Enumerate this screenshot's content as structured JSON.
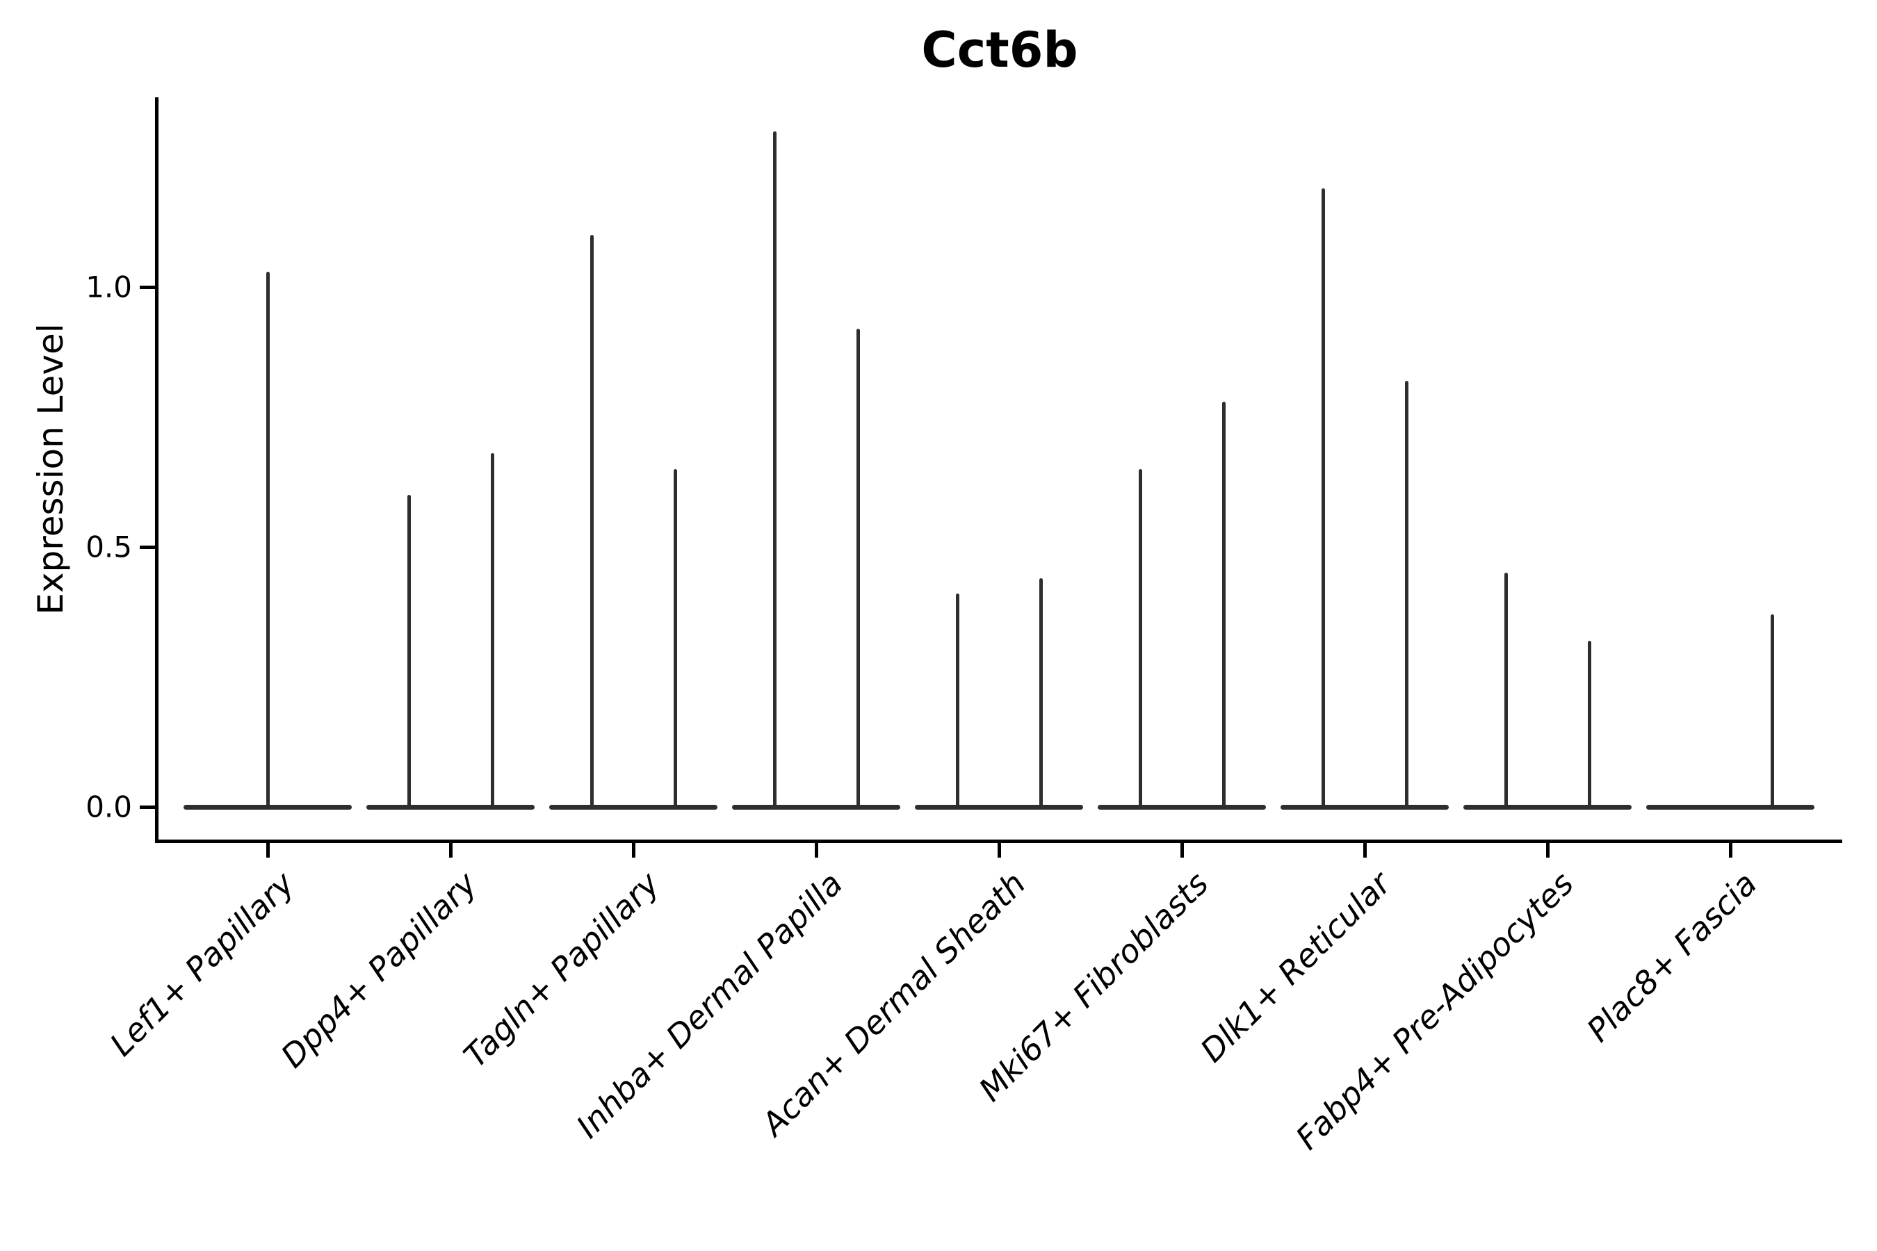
{
  "title": "Cct6b",
  "y_axis": {
    "label": "Expression Level",
    "tick_labels": [
      "1.0",
      "0.5",
      "0.0"
    ]
  },
  "colors": {
    "violin": "#2e2e2e",
    "axis": "#000000",
    "background": "#ffffff"
  },
  "chart_data": {
    "type": "violin",
    "title": "Cct6b",
    "xlabel": "",
    "ylabel": "Expression Level",
    "ylim": [
      -0.07,
      1.37
    ],
    "yticks": [
      1.0,
      0.5,
      0.0
    ],
    "ytick_labels": [
      "1.0",
      "0.5",
      "0.0"
    ],
    "grid": false,
    "legend_position": "none",
    "x_label_rotation_deg": 45,
    "categories": [
      "Lef1+ Papillary",
      "Dpp4+ Papillary",
      "Tagln+ Papillary",
      "Inhba+ Dermal Papilla",
      "Acan+ Dermal Sheath",
      "Mki67+ Fibroblasts",
      "Dlk1+ Reticular",
      "Fabp4+ Pre-Adipocytes",
      "Plac8+ Fascia"
    ],
    "description": "Needle-thin violins: nearly all cells at expression 0 (flat baseline per group), with one or two thin spikes per group reaching the max expression value.",
    "violins": [
      {
        "category": "Lef1+ Papillary",
        "baseline_value": 0,
        "spikes": [
          {
            "position": "center",
            "max": 1.03
          }
        ]
      },
      {
        "category": "Dpp4+ Papillary",
        "baseline_value": 0,
        "spikes": [
          {
            "position": "left",
            "max": 0.6
          },
          {
            "position": "right",
            "max": 0.68
          }
        ]
      },
      {
        "category": "Tagln+ Papillary",
        "baseline_value": 0,
        "spikes": [
          {
            "position": "left",
            "max": 1.1
          },
          {
            "position": "right",
            "max": 0.65
          }
        ]
      },
      {
        "category": "Inhba+ Dermal Papilla",
        "baseline_value": 0,
        "spikes": [
          {
            "position": "left",
            "max": 1.3
          },
          {
            "position": "right",
            "max": 0.92
          }
        ]
      },
      {
        "category": "Acan+ Dermal Sheath",
        "baseline_value": 0,
        "spikes": [
          {
            "position": "left",
            "max": 0.41
          },
          {
            "position": "right",
            "max": 0.44
          }
        ]
      },
      {
        "category": "Mki67+ Fibroblasts",
        "baseline_value": 0,
        "spikes": [
          {
            "position": "left",
            "max": 0.65
          },
          {
            "position": "right",
            "max": 0.78
          }
        ]
      },
      {
        "category": "Dlk1+ Reticular",
        "baseline_value": 0,
        "spikes": [
          {
            "position": "left",
            "max": 1.19
          },
          {
            "position": "right",
            "max": 0.82
          }
        ]
      },
      {
        "category": "Fabp4+ Pre-Adipocytes",
        "baseline_value": 0,
        "spikes": [
          {
            "position": "left",
            "max": 0.45
          },
          {
            "position": "right",
            "max": 0.32
          }
        ]
      },
      {
        "category": "Plac8+ Fascia",
        "baseline_value": 0,
        "spikes": [
          {
            "position": "right",
            "max": 0.37
          }
        ]
      }
    ]
  }
}
